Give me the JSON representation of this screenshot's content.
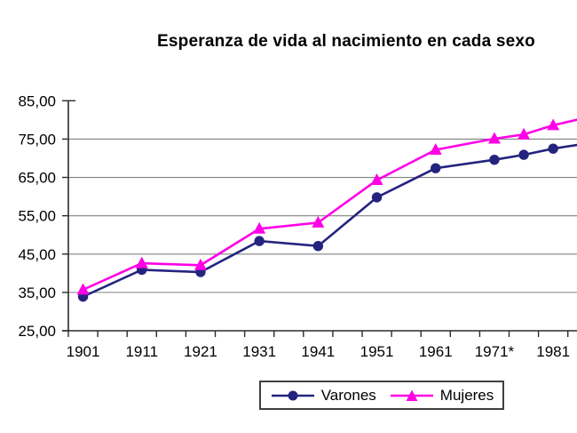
{
  "chart_data": {
    "type": "line",
    "title": "Esperanza de vida al nacimiento en cada sexo",
    "xlabel": "",
    "ylabel": "",
    "x_tick_labels": [
      "1901",
      "1911",
      "1921",
      "1931",
      "1941",
      "1951",
      "1961",
      "1971*",
      "1981"
    ],
    "x_years": [
      1901,
      1911,
      1921,
      1931,
      1941,
      1951,
      1961,
      1971,
      1976,
      1981
    ],
    "ylim": [
      25,
      85
    ],
    "ytick_step": 10,
    "y_tick_labels": [
      "85,00",
      "75,00",
      "65,00",
      "55,00",
      "45,00",
      "35,00",
      "25,00"
    ],
    "grid": "horizontal",
    "legend_position": "bottom",
    "right_edge_clipped": true,
    "series": [
      {
        "name": "Varones",
        "marker": "circle",
        "color": "#24247f",
        "values": [
          33.9,
          40.9,
          40.3,
          48.4,
          47.1,
          59.8,
          67.4,
          69.6,
          70.9,
          72.5
        ],
        "value_at_right_clip_edge": 73.5
      },
      {
        "name": "Mujeres",
        "marker": "triangle",
        "color": "#ff00e6",
        "values": [
          35.7,
          42.6,
          42.1,
          51.6,
          53.2,
          64.3,
          72.2,
          75.1,
          76.2,
          78.6
        ],
        "value_at_right_clip_edge": 80.1
      }
    ]
  },
  "colors": {
    "background": "#ffffff",
    "gridline": "#808080",
    "axis": "#2b2b2b",
    "tick_text": "#000000",
    "title_text": "#000000",
    "legend_border": "#3f3f3f",
    "legend_background": "#ffffff"
  }
}
